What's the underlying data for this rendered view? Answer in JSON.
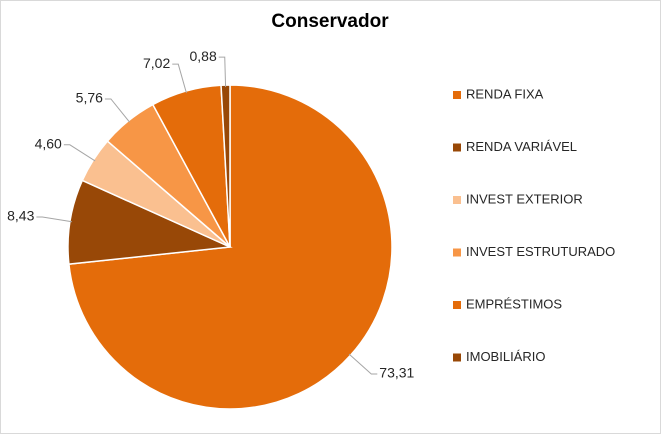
{
  "chart_data": {
    "type": "pie",
    "title": "Conservador",
    "categories": [
      "RENDA FIXA",
      "RENDA VARIÁVEL",
      "INVEST EXTERIOR",
      "INVEST ESTRUTURADO",
      "EMPRÉSTIMOS",
      "IMOBILIÁRIO"
    ],
    "values": [
      73.31,
      8.43,
      4.6,
      5.76,
      7.02,
      0.88
    ],
    "value_labels": [
      "73,31",
      "8,43",
      "4,60",
      "5,76",
      "7,02",
      "0,88"
    ],
    "colors": [
      "#e46c0a",
      "#984807",
      "#fac090",
      "#f79646",
      "#e46c0a",
      "#984807"
    ],
    "legend": "right"
  }
}
